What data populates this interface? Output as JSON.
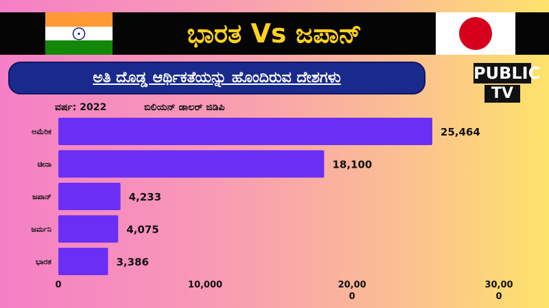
{
  "header": {
    "title": "ಭಾರತ Vs  ಜಪಾನ್",
    "subtitle": "ಅತಿ ದೊಡ್ಡ ಆರ್ಥಿಕತೆಯನ್ನು ಹೊಂದಿರುವ ದೇಶಗಳು",
    "left_flag": "india-flag-icon",
    "right_flag": "japan-flag-icon"
  },
  "logo": {
    "line1": "PUBLIC",
    "line2": "TV"
  },
  "colors": {
    "bar": "#6a2ef5",
    "banner": "#1a2a8c",
    "title": "#ffd21f",
    "saffron": "#ff9933",
    "green": "#138808",
    "chakra": "#000080",
    "japan_red": "#d6001c"
  },
  "chart_data": {
    "type": "bar",
    "orientation": "horizontal",
    "annotation_left": "ವರ್ಷ: 2022",
    "annotation_right": "ಬಿಲಿಯನ್ ಡಾಲರ್ ಜಿಡಿಪಿ",
    "categories": [
      "ಅಮೆರಿಕ",
      "ಚೀನಾ",
      "ಜಪಾನ್",
      "ಜರ್ಮನಿ",
      "ಭಾರತ"
    ],
    "values": [
      25464,
      18100,
      4233,
      4075,
      3386
    ],
    "value_labels": [
      "25,464",
      "18,100",
      "4,233",
      "4,075",
      "3,386"
    ],
    "xlim": [
      0,
      30000
    ],
    "xticks": [
      0,
      10000,
      20000,
      30000
    ],
    "xtick_labels": [
      [
        "0"
      ],
      [
        "10,000"
      ],
      [
        "20,00",
        "0"
      ],
      [
        "30,00",
        "0"
      ]
    ],
    "grid": false
  }
}
